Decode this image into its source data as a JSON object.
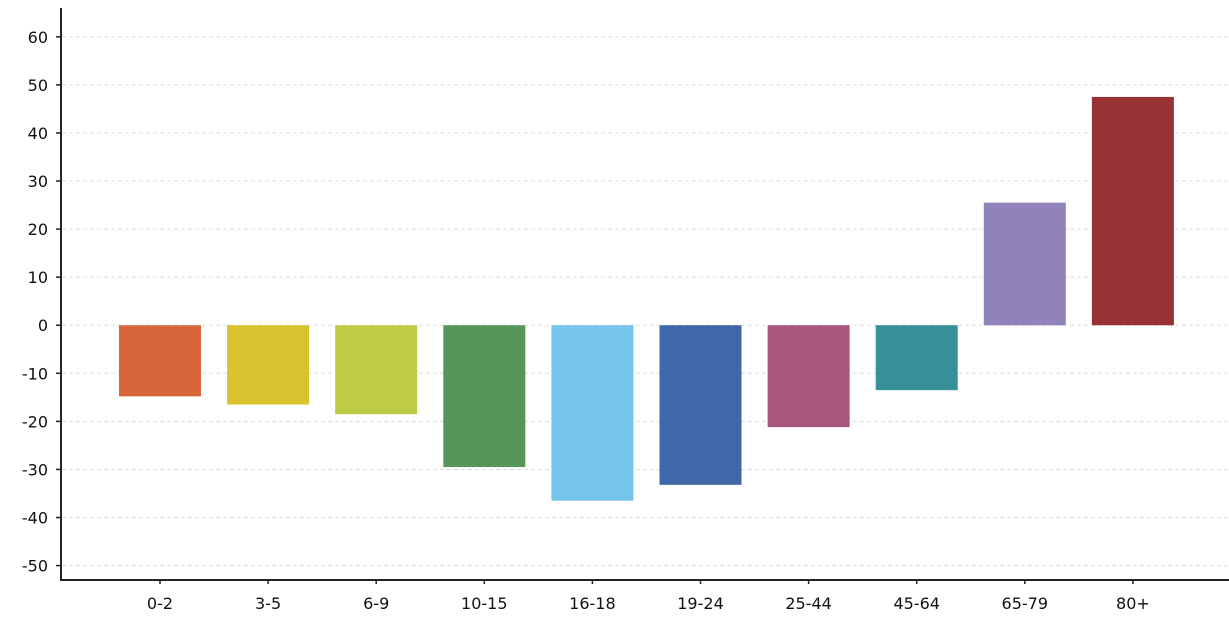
{
  "chart_data": {
    "type": "bar",
    "title": "",
    "xlabel": "",
    "ylabel": "",
    "categories": [
      "0-2",
      "3-5",
      "6-9",
      "10-15",
      "16-18",
      "19-24",
      "25-44",
      "45-64",
      "65-79",
      "80+"
    ],
    "values": [
      -14.8,
      -16.5,
      -18.5,
      -29.5,
      -36.5,
      -33.2,
      -21.2,
      -13.5,
      25.5,
      47.5
    ],
    "colors": [
      "#d9663a",
      "#d8c22e",
      "#bdcc44",
      "#57965a",
      "#74c4ec",
      "#4068a8",
      "#a8577b",
      "#36909a",
      "#9083ba",
      "#993234"
    ],
    "ylim": [
      -53,
      66
    ],
    "yticks": [
      60,
      50,
      40,
      30,
      20,
      10,
      0,
      -10,
      -20,
      -30,
      -40,
      -50
    ],
    "ytick_labels": [
      "60",
      "50",
      "40",
      "30",
      "20",
      "10",
      "0",
      "-10",
      "-20",
      "-30",
      "-40",
      "-50"
    ],
    "grid": true,
    "legend": "none"
  }
}
